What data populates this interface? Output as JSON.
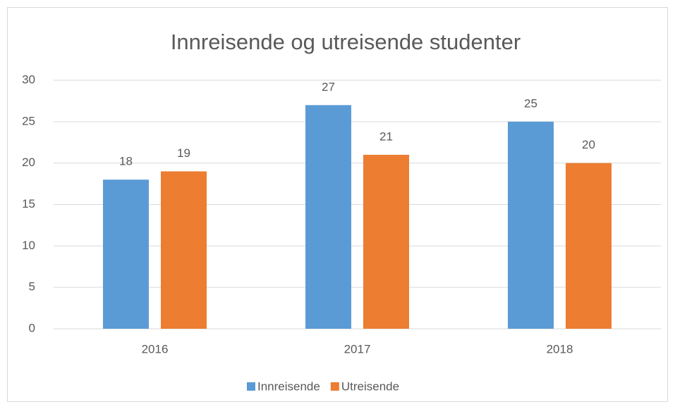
{
  "chart_data": {
    "type": "bar",
    "title": "Innreisende og utreisende studenter",
    "categories": [
      "2016",
      "2017",
      "2018"
    ],
    "series": [
      {
        "name": "Innreisende",
        "color": "#5b9bd5",
        "values": [
          18,
          27,
          25
        ]
      },
      {
        "name": "Utreisende",
        "color": "#ed7d31",
        "values": [
          19,
          21,
          20
        ]
      }
    ],
    "ylim": [
      0,
      30
    ],
    "yticks": [
      0,
      5,
      10,
      15,
      20,
      25,
      30
    ],
    "grid": true,
    "legend": "bottom"
  }
}
